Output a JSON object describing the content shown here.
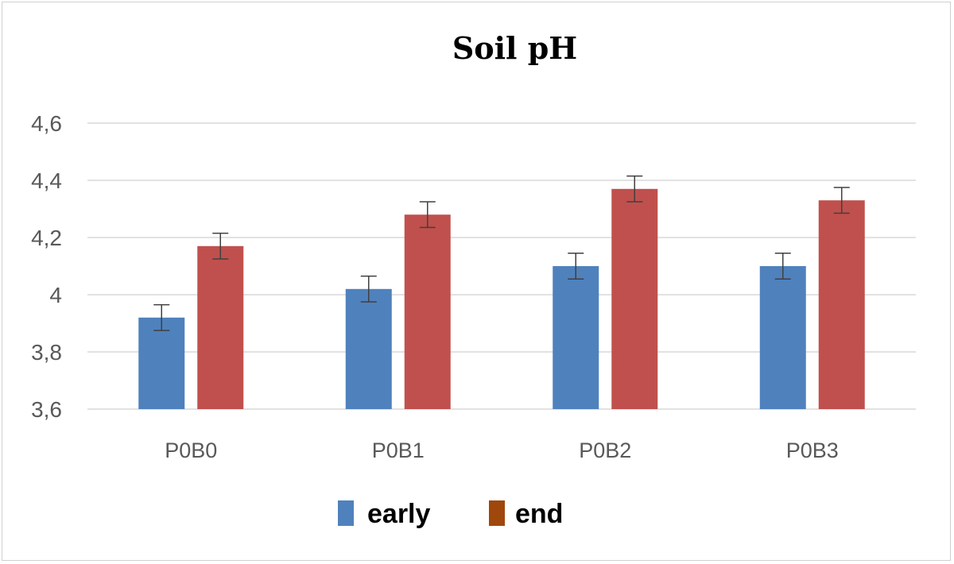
{
  "chart_data": {
    "type": "bar",
    "title": "Soil pH",
    "xlabel": "",
    "ylabel": "",
    "categories": [
      "P0B0",
      "P0B1",
      "P0B2",
      "P0B3"
    ],
    "series": [
      {
        "name": "early",
        "values": [
          3.92,
          4.02,
          4.1,
          4.1
        ],
        "errors": [
          0.045,
          0.045,
          0.045,
          0.045
        ],
        "color": "#4F81BD",
        "legend_color": "#4F81BD"
      },
      {
        "name": "end",
        "values": [
          4.17,
          4.28,
          4.37,
          4.33
        ],
        "errors": [
          0.045,
          0.045,
          0.045,
          0.045
        ],
        "color": "#C0504D",
        "legend_color": "#A0470C"
      }
    ],
    "ylim": [
      3.6,
      4.6
    ],
    "yticks": [
      3.6,
      3.8,
      4.0,
      4.2,
      4.4,
      4.6
    ],
    "ytick_labels": [
      "3,6",
      "3,8",
      "4",
      "4,2",
      "4,4",
      "4,6"
    ],
    "grid": true,
    "legend_position": "bottom"
  }
}
